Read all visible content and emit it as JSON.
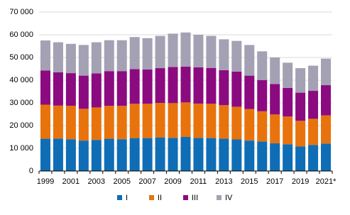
{
  "chart_data": {
    "type": "stacked_bar",
    "categories": [
      "1999",
      null,
      "2001",
      null,
      "2003",
      null,
      "2005",
      null,
      "2007",
      null,
      "2009",
      null,
      "2011",
      null,
      "2013",
      null,
      "2015",
      null,
      "2017",
      null,
      "2019",
      null,
      "2021*"
    ],
    "series": [
      {
        "name": "I",
        "color": "#0f6db5",
        "values": [
          14200,
          14300,
          14000,
          13400,
          13700,
          14200,
          14000,
          14500,
          14500,
          14800,
          14600,
          15000,
          14600,
          14500,
          14300,
          13900,
          13400,
          13000,
          12200,
          11800,
          10800,
          11500,
          12100
        ]
      },
      {
        "name": "II",
        "color": "#e8730c",
        "values": [
          15000,
          14500,
          14700,
          14000,
          14300,
          14500,
          14700,
          15100,
          15100,
          15200,
          15300,
          15200,
          15100,
          15100,
          14700,
          14400,
          13900,
          13300,
          12700,
          12200,
          11300,
          11500,
          12400
        ]
      },
      {
        "name": "III",
        "color": "#8c0a80",
        "values": [
          15100,
          14700,
          14400,
          14600,
          15000,
          15300,
          15300,
          15300,
          15100,
          15300,
          15900,
          15800,
          16000,
          15800,
          15400,
          15500,
          14700,
          13700,
          13400,
          12600,
          12400,
          12300,
          13300
        ]
      },
      {
        "name": "IV",
        "color": "#a3a1b3",
        "values": [
          13200,
          13200,
          12900,
          13500,
          13700,
          13600,
          13600,
          14100,
          13800,
          14200,
          14700,
          15000,
          14300,
          14100,
          13600,
          13500,
          13500,
          12700,
          11700,
          11100,
          10800,
          11100,
          11700
        ]
      }
    ],
    "ylim": [
      0,
      70000
    ],
    "yticks": [
      {
        "value": 0,
        "label": "0"
      },
      {
        "value": 10000,
        "label": "10 000"
      },
      {
        "value": 20000,
        "label": "20 000"
      },
      {
        "value": 30000,
        "label": "30 000"
      },
      {
        "value": 40000,
        "label": "40 000"
      },
      {
        "value": 50000,
        "label": "50 000"
      },
      {
        "value": 60000,
        "label": "60 000"
      },
      {
        "value": 70000,
        "label": "70 000"
      }
    ],
    "grid": true
  }
}
